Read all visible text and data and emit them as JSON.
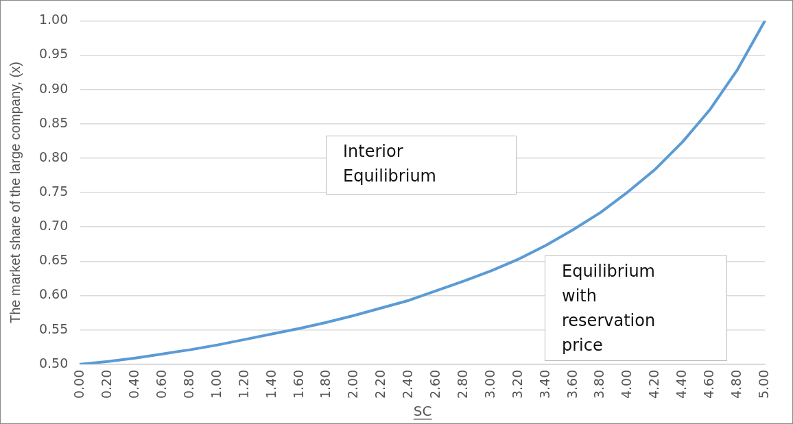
{
  "chart_data": {
    "type": "line",
    "xlabel": "SC",
    "ylabel": "The market share of the large company, (x)",
    "categories": [
      "0.00",
      "0.20",
      "0.40",
      "0.60",
      "0.80",
      "1.00",
      "1.20",
      "1.40",
      "1.60",
      "1.80",
      "2.00",
      "2.20",
      "2.40",
      "2.60",
      "2.80",
      "3.00",
      "3.20",
      "3.40",
      "3.60",
      "3.80",
      "4.00",
      "4.20",
      "4.40",
      "4.60",
      "4.80",
      "5.00"
    ],
    "series": [
      {
        "color": "#5b9bd5",
        "values": [
          0.5,
          0.504,
          0.509,
          0.515,
          0.521,
          0.528,
          0.536,
          0.544,
          0.552,
          0.561,
          0.571,
          0.582,
          0.593,
          0.607,
          0.621,
          0.636,
          0.653,
          0.673,
          0.696,
          0.721,
          0.751,
          0.784,
          0.824,
          0.871,
          0.929,
          1.0
        ]
      }
    ],
    "ylim": [
      0.5,
      1.0
    ],
    "yticks": [
      {
        "value": 0.5,
        "label": "0.50"
      },
      {
        "value": 0.55,
        "label": "0.55"
      },
      {
        "value": 0.6,
        "label": "0.60"
      },
      {
        "value": 0.65,
        "label": "0.65"
      },
      {
        "value": 0.7,
        "label": "0.70"
      },
      {
        "value": 0.75,
        "label": "0.75"
      },
      {
        "value": 0.8,
        "label": "0.80"
      },
      {
        "value": 0.85,
        "label": "0.85"
      },
      {
        "value": 0.9,
        "label": "0.90"
      },
      {
        "value": 0.95,
        "label": "0.95"
      },
      {
        "value": 1.0,
        "label": "1.00"
      }
    ],
    "grid": "y",
    "legend": false,
    "marker": "none",
    "line_style": "solid",
    "annotations": [
      "Interior Equilibrium",
      "Equilibrium with reservation price"
    ]
  }
}
